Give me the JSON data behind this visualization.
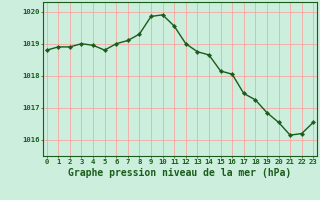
{
  "x": [
    0,
    1,
    2,
    3,
    4,
    5,
    6,
    7,
    8,
    9,
    10,
    11,
    12,
    13,
    14,
    15,
    16,
    17,
    18,
    19,
    20,
    21,
    22,
    23
  ],
  "y": [
    1018.8,
    1018.9,
    1018.9,
    1019.0,
    1018.95,
    1018.8,
    1019.0,
    1019.1,
    1019.3,
    1019.85,
    1019.9,
    1019.55,
    1019.0,
    1018.75,
    1018.65,
    1018.15,
    1018.05,
    1017.45,
    1017.25,
    1016.85,
    1016.55,
    1016.15,
    1016.2,
    1016.55
  ],
  "line_color": "#1a5c1a",
  "marker": "D",
  "marker_size": 2.2,
  "bg_color": "#cceedd",
  "grid_color": "#ff9999",
  "axis_color": "#1a5c1a",
  "xlabel": "Graphe pression niveau de la mer (hPa)",
  "xlabel_fontsize": 7.0,
  "ylim": [
    1015.5,
    1020.3
  ],
  "yticks": [
    1016,
    1017,
    1018,
    1019,
    1020
  ],
  "xticks": [
    0,
    1,
    2,
    3,
    4,
    5,
    6,
    7,
    8,
    9,
    10,
    11,
    12,
    13,
    14,
    15,
    16,
    17,
    18,
    19,
    20,
    21,
    22,
    23
  ],
  "tick_fontsize": 5.2,
  "line_width": 1.0
}
